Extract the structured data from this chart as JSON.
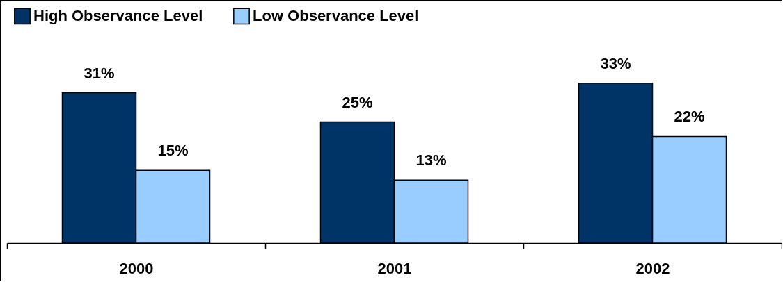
{
  "chart_data": {
    "type": "bar",
    "categories": [
      "2000",
      "2001",
      "2002"
    ],
    "series": [
      {
        "name": "High Observance Level",
        "color": "#003366",
        "values": [
          31,
          25,
          33
        ],
        "value_labels": [
          "31%",
          "25%",
          "33%"
        ]
      },
      {
        "name": "Low Observance Level",
        "color": "#99ccff",
        "values": [
          15,
          13,
          22
        ],
        "value_labels": [
          "15%",
          "13%",
          "22%"
        ]
      }
    ],
    "ylim": [
      0,
      50
    ],
    "grid": false,
    "legend": "top left"
  }
}
